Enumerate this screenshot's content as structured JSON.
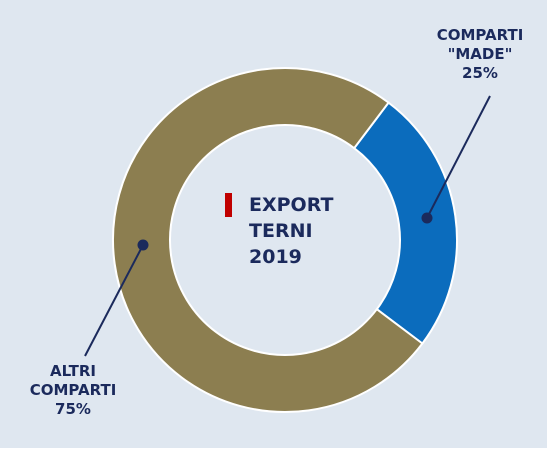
{
  "chart_data": {
    "type": "donut",
    "title": "EXPORT TERNI 2019",
    "categories": [
      "COMPARTI \"MADE\"",
      "ALTRI COMPARTI"
    ],
    "values": [
      25,
      75
    ],
    "value_labels": [
      "25%",
      "75%"
    ],
    "colors": [
      "#0b6cbd",
      "#8c7e50"
    ]
  }
}
